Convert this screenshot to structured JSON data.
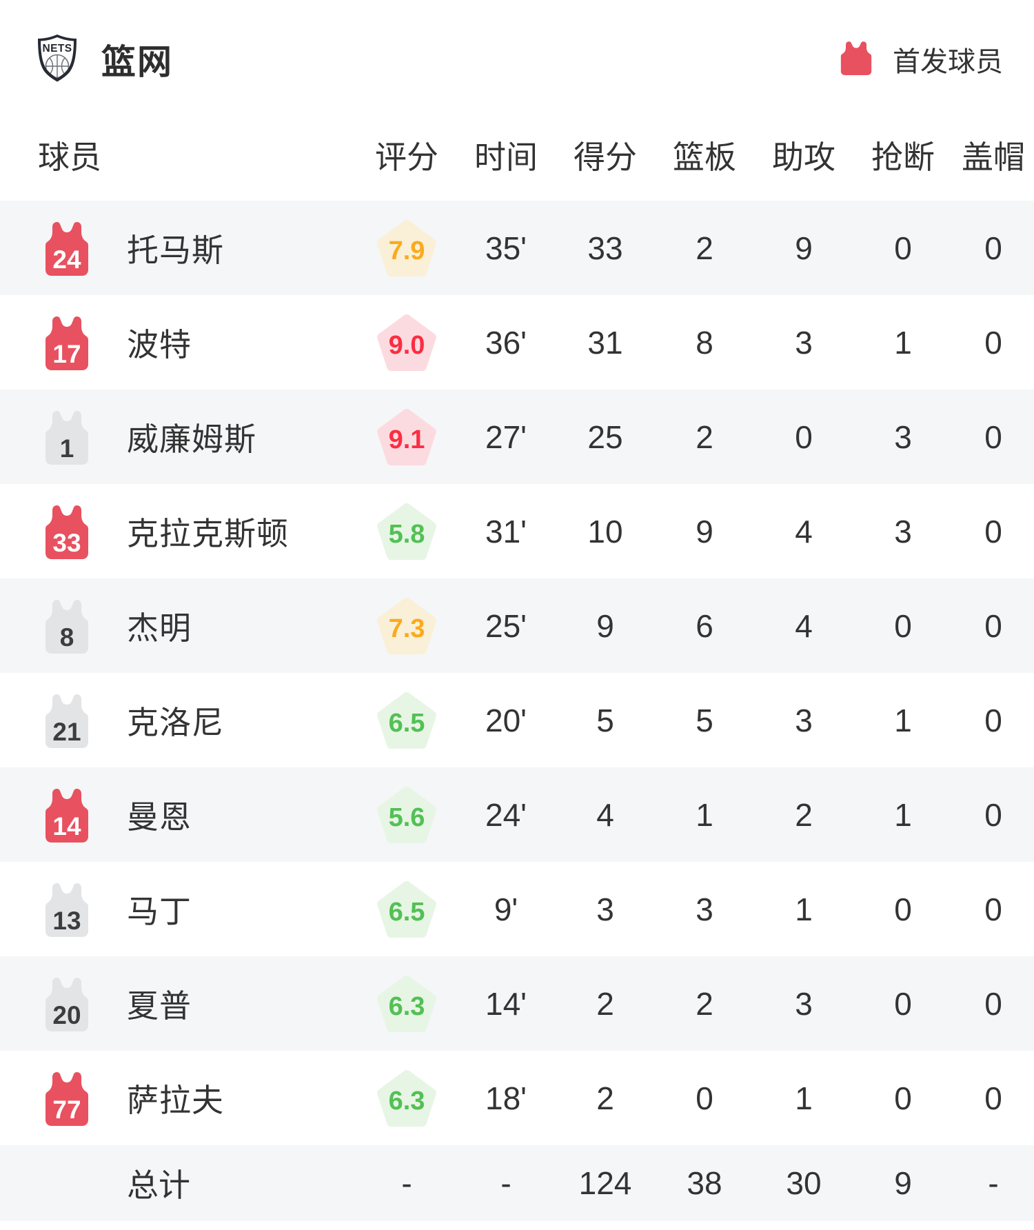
{
  "team": {
    "title": "篮网",
    "logo_text": "NETS"
  },
  "legend": {
    "label": "首发球员"
  },
  "columns": {
    "player": "球员",
    "rating": "评分",
    "time": "时间",
    "points": "得分",
    "rebounds": "篮板",
    "assists": "助攻",
    "steals": "抢断",
    "blocks": "盖帽"
  },
  "players": [
    {
      "number": "24",
      "starter": true,
      "name": "托马斯",
      "rating": "7.9",
      "rating_tone": "orange",
      "time": "35'",
      "points": "33",
      "rebounds": "2",
      "assists": "9",
      "steals": "0",
      "blocks": "0"
    },
    {
      "number": "17",
      "starter": true,
      "name": "波特",
      "rating": "9.0",
      "rating_tone": "red",
      "time": "36'",
      "points": "31",
      "rebounds": "8",
      "assists": "3",
      "steals": "1",
      "blocks": "0"
    },
    {
      "number": "1",
      "starter": false,
      "name": "威廉姆斯",
      "rating": "9.1",
      "rating_tone": "red",
      "time": "27'",
      "points": "25",
      "rebounds": "2",
      "assists": "0",
      "steals": "3",
      "blocks": "0"
    },
    {
      "number": "33",
      "starter": true,
      "name": "克拉克斯顿",
      "rating": "5.8",
      "rating_tone": "green",
      "time": "31'",
      "points": "10",
      "rebounds": "9",
      "assists": "4",
      "steals": "3",
      "blocks": "0"
    },
    {
      "number": "8",
      "starter": false,
      "name": "杰明",
      "rating": "7.3",
      "rating_tone": "orange",
      "time": "25'",
      "points": "9",
      "rebounds": "6",
      "assists": "4",
      "steals": "0",
      "blocks": "0"
    },
    {
      "number": "21",
      "starter": false,
      "name": "克洛尼",
      "rating": "6.5",
      "rating_tone": "green",
      "time": "20'",
      "points": "5",
      "rebounds": "5",
      "assists": "3",
      "steals": "1",
      "blocks": "0"
    },
    {
      "number": "14",
      "starter": true,
      "name": "曼恩",
      "rating": "5.6",
      "rating_tone": "green",
      "time": "24'",
      "points": "4",
      "rebounds": "1",
      "assists": "2",
      "steals": "1",
      "blocks": "0"
    },
    {
      "number": "13",
      "starter": false,
      "name": "马丁",
      "rating": "6.5",
      "rating_tone": "green",
      "time": "9'",
      "points": "3",
      "rebounds": "3",
      "assists": "1",
      "steals": "0",
      "blocks": "0"
    },
    {
      "number": "20",
      "starter": false,
      "name": "夏普",
      "rating": "6.3",
      "rating_tone": "green",
      "time": "14'",
      "points": "2",
      "rebounds": "2",
      "assists": "3",
      "steals": "0",
      "blocks": "0"
    },
    {
      "number": "77",
      "starter": true,
      "name": "萨拉夫",
      "rating": "6.3",
      "rating_tone": "green",
      "time": "18'",
      "points": "2",
      "rebounds": "0",
      "assists": "1",
      "steals": "0",
      "blocks": "0"
    }
  ],
  "totals": {
    "label": "总计",
    "rating": "-",
    "time": "-",
    "points": "124",
    "rebounds": "38",
    "assists": "30",
    "steals": "9",
    "blocks": "-"
  },
  "icons": {
    "team_logo": "nets-shield-logo",
    "starter_legend": "red-jersey-icon",
    "player_marker": "jersey-icon",
    "rating_shape": "pentagon-badge"
  },
  "colors": {
    "starter_jersey": "#e8515f",
    "bench_jersey": "#e3e4e6",
    "row_alt_bg": "#f5f6f8",
    "text": "#333333",
    "rating_orange_text": "#fbaa1e",
    "rating_orange_bg": "#faf0d7",
    "rating_red_text": "#fb2e42",
    "rating_red_bg": "#fcdbe0",
    "rating_green_text": "#53c054",
    "rating_green_bg": "#e7f5e5"
  }
}
